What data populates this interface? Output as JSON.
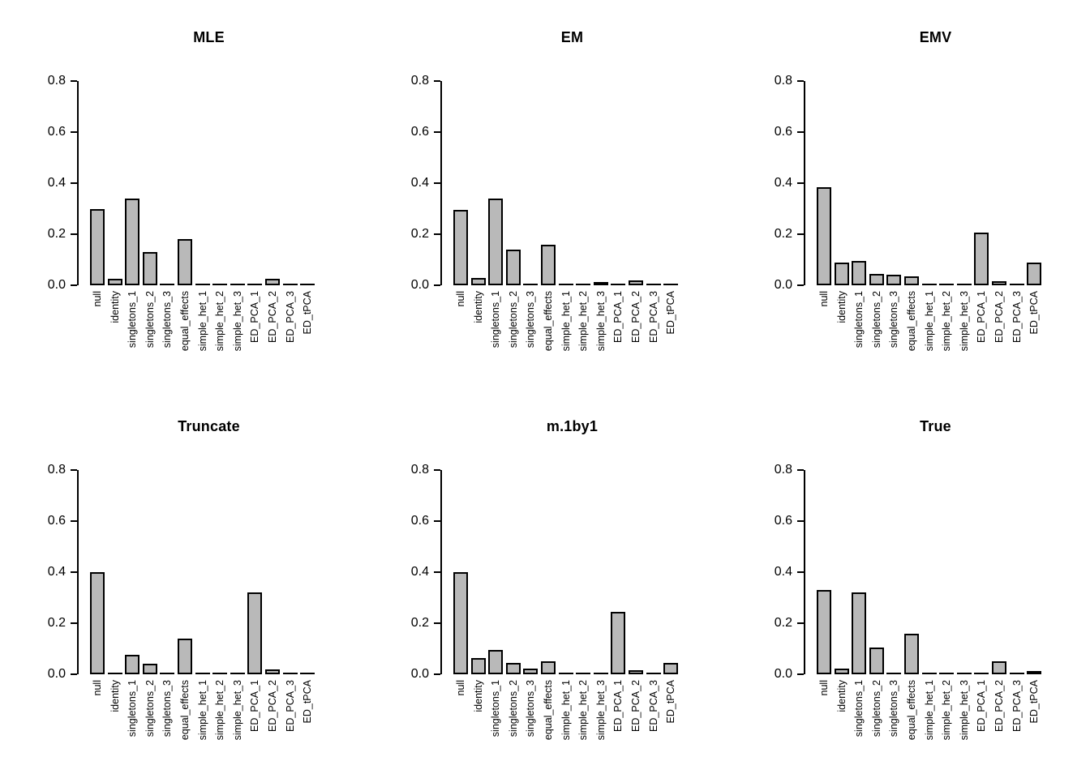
{
  "figure": {
    "background": "#ffffff",
    "grid": {
      "rows": 2,
      "cols": 3
    }
  },
  "chart_data": {
    "type": "bar",
    "categories": [
      "null",
      "identity",
      "singletons_1",
      "singletons_2",
      "singletons_3",
      "equal_effects",
      "simple_het_1",
      "simple_het_2",
      "simple_het_3",
      "ED_PCA_1",
      "ED_PCA_2",
      "ED_PCA_3",
      "ED_tPCA"
    ],
    "ylim": [
      0,
      0.8
    ],
    "yticks": [
      0.0,
      0.2,
      0.4,
      0.6,
      0.8
    ],
    "ytick_labels": [
      "0.0",
      "0.2",
      "0.4",
      "0.6",
      "0.8"
    ],
    "xlabel": "",
    "ylabel": "",
    "grid_lines": false,
    "legend": "none",
    "bar_fill": "#b9b9b9",
    "bar_border": "#000000",
    "panels": [
      {
        "title": "MLE",
        "values": [
          0.3,
          0.025,
          0.34,
          0.13,
          0,
          0.18,
          0,
          0,
          0,
          0,
          0.025,
          0,
          0
        ]
      },
      {
        "title": "EM",
        "values": [
          0.295,
          0.03,
          0.34,
          0.14,
          0,
          0.16,
          0,
          0,
          0.008,
          0,
          0.018,
          0,
          0
        ]
      },
      {
        "title": "EMV",
        "values": [
          0.385,
          0.09,
          0.095,
          0.045,
          0.04,
          0.035,
          0,
          0,
          0,
          0.205,
          0.015,
          0,
          0.09
        ]
      },
      {
        "title": "Truncate",
        "values": [
          0.4,
          0,
          0.075,
          0.04,
          0,
          0.14,
          0,
          0,
          0,
          0.32,
          0.02,
          0,
          0
        ]
      },
      {
        "title": "m.1by1",
        "values": [
          0.4,
          0.065,
          0.095,
          0.045,
          0.022,
          0.05,
          0,
          0,
          0,
          0.245,
          0.015,
          0,
          0.045
        ]
      },
      {
        "title": "True",
        "values": [
          0.33,
          0.022,
          0.32,
          0.105,
          0,
          0.16,
          0,
          0,
          0,
          0,
          0.05,
          0,
          0.012
        ]
      }
    ]
  }
}
